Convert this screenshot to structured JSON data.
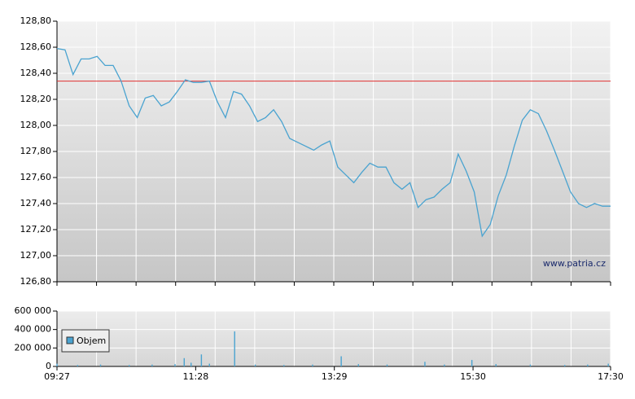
{
  "chart_data": [
    {
      "type": "line",
      "x": [
        "09:27",
        "09:34",
        "09:41",
        "09:48",
        "09:55",
        "10:02",
        "10:09",
        "10:16",
        "10:23",
        "10:30",
        "10:37",
        "10:44",
        "10:51",
        "10:58",
        "11:05",
        "11:12",
        "11:19",
        "11:26",
        "11:33",
        "11:40",
        "11:47",
        "11:54",
        "12:01",
        "12:08",
        "12:15",
        "12:22",
        "12:29",
        "12:36",
        "12:43",
        "12:50",
        "12:57",
        "13:04",
        "13:11",
        "13:18",
        "13:25",
        "13:32",
        "13:39",
        "13:46",
        "13:53",
        "14:00",
        "14:07",
        "14:14",
        "14:21",
        "14:28",
        "14:35",
        "14:42",
        "14:49",
        "14:56",
        "15:03",
        "15:10",
        "15:17",
        "15:24",
        "15:31",
        "15:38",
        "15:45",
        "15:52",
        "15:59",
        "16:06",
        "16:13",
        "16:20",
        "16:27",
        "16:34",
        "16:41",
        "16:48",
        "16:55",
        "17:02",
        "17:09",
        "17:16",
        "17:23",
        "17:30"
      ],
      "series": [
        {
          "color": "#4aa3d0",
          "values": [
            128.59,
            128.58,
            128.39,
            128.51,
            128.51,
            128.53,
            128.46,
            128.46,
            128.34,
            128.15,
            128.06,
            128.21,
            128.23,
            128.15,
            128.18,
            128.26,
            128.35,
            128.33,
            128.33,
            128.34,
            128.18,
            128.06,
            128.26,
            128.24,
            128.15,
            128.03,
            128.06,
            128.12,
            128.03,
            127.9,
            127.87,
            127.84,
            127.81,
            127.85,
            127.88,
            127.68,
            127.62,
            127.56,
            127.64,
            127.71,
            127.68,
            127.68,
            127.56,
            127.51,
            127.56,
            127.37,
            127.43,
            127.45,
            127.51,
            127.56,
            127.78,
            127.65,
            127.49,
            127.15,
            127.24,
            127.46,
            127.62,
            127.84,
            128.04,
            128.12,
            128.09,
            127.96,
            127.81,
            127.65,
            127.49,
            127.4,
            127.37,
            127.4,
            127.38,
            127.38
          ]
        }
      ],
      "reference_line": {
        "value": 128.34,
        "color": "#e03030"
      },
      "xlim": [
        "09:27",
        "17:30"
      ],
      "ylim": [
        126.8,
        128.8
      ],
      "yticks": [
        {
          "value": 126.8,
          "label": "126,80"
        },
        {
          "value": 127.0,
          "label": "127,00"
        },
        {
          "value": 127.2,
          "label": "127,20"
        },
        {
          "value": 127.4,
          "label": "127,40"
        },
        {
          "value": 127.6,
          "label": "127,60"
        },
        {
          "value": 127.8,
          "label": "127,80"
        },
        {
          "value": 128.0,
          "label": "128,00"
        },
        {
          "value": 128.2,
          "label": "128,20"
        },
        {
          "value": 128.4,
          "label": "128,40"
        },
        {
          "value": 128.6,
          "label": "128,60"
        },
        {
          "value": 128.8,
          "label": "128,80"
        }
      ],
      "grid": true,
      "annotation": "www.patria.cz"
    },
    {
      "type": "bar",
      "x": [
        "09:27",
        "09:45",
        "10:05",
        "10:30",
        "10:50",
        "11:10",
        "11:18",
        "11:24",
        "11:33",
        "11:40",
        "12:02",
        "12:20",
        "12:45",
        "13:10",
        "13:35",
        "13:50",
        "14:15",
        "14:48",
        "15:05",
        "15:29",
        "15:50",
        "16:20",
        "16:50",
        "17:10",
        "17:28"
      ],
      "series": [
        {
          "name": "Objem",
          "color": "#4aa3d0",
          "values": [
            30000,
            15000,
            20000,
            15000,
            20000,
            25000,
            90000,
            40000,
            130000,
            30000,
            380000,
            20000,
            15000,
            20000,
            110000,
            25000,
            20000,
            50000,
            20000,
            70000,
            25000,
            20000,
            15000,
            20000,
            30000
          ]
        }
      ],
      "xlim": [
        "09:27",
        "17:30"
      ],
      "xticks": [
        "09:27",
        "11:28",
        "13:29",
        "15:30",
        "17:30"
      ],
      "ylim": [
        0,
        600000
      ],
      "yticks": [
        {
          "value": 0,
          "label": "0"
        },
        {
          "value": 200000,
          "label": "200 000"
        },
        {
          "value": 400000,
          "label": "400 000"
        },
        {
          "value": 600000,
          "label": "600 000"
        }
      ],
      "grid": true,
      "legend": "upper left"
    }
  ]
}
